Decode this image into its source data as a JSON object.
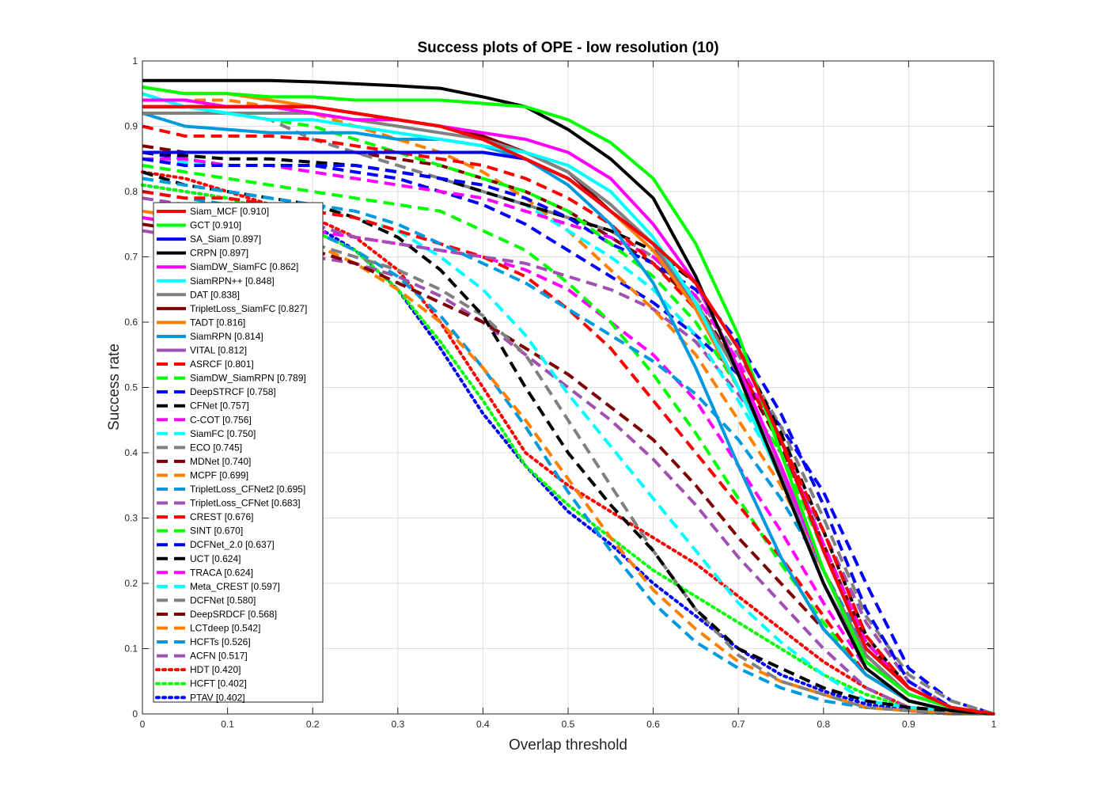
{
  "chart_data": {
    "type": "line",
    "title": "Success plots of OPE - low resolution (10)",
    "xlabel": "Overlap threshold",
    "ylabel": "Success rate",
    "xlim": [
      0,
      1
    ],
    "ylim": [
      0,
      1
    ],
    "grid": true,
    "legend_position": "left",
    "xticks": [
      "0",
      "0.1",
      "0.2",
      "0.3",
      "0.4",
      "0.5",
      "0.6",
      "0.7",
      "0.8",
      "0.9",
      "1"
    ],
    "yticks": [
      "0",
      "0.1",
      "0.2",
      "0.3",
      "0.4",
      "0.5",
      "0.6",
      "0.7",
      "0.8",
      "0.9",
      "1"
    ],
    "x": [
      0,
      0.05,
      0.1,
      0.15,
      0.2,
      0.25,
      0.3,
      0.35,
      0.4,
      0.45,
      0.5,
      0.55,
      0.6,
      0.65,
      0.7,
      0.75,
      0.8,
      0.85,
      0.9,
      0.95,
      1.0
    ],
    "series": [
      {
        "name": "Siam_MCF",
        "label": "Siam_MCF [0.910]",
        "color": "#ff0000",
        "style": "solid",
        "values": [
          0.93,
          0.93,
          0.93,
          0.93,
          0.93,
          0.92,
          0.91,
          0.9,
          0.88,
          0.85,
          0.82,
          0.77,
          0.72,
          0.66,
          0.56,
          0.42,
          0.25,
          0.1,
          0.04,
          0.01,
          0
        ]
      },
      {
        "name": "GCT",
        "label": "GCT [0.910]",
        "color": "#00ff00",
        "style": "solid",
        "values": [
          0.96,
          0.95,
          0.95,
          0.945,
          0.945,
          0.94,
          0.94,
          0.94,
          0.935,
          0.93,
          0.91,
          0.875,
          0.82,
          0.72,
          0.58,
          0.4,
          0.22,
          0.08,
          0.03,
          0.01,
          0
        ]
      },
      {
        "name": "SA_Siam",
        "label": "SA_Siam [0.897]",
        "color": "#0000ff",
        "style": "solid",
        "values": [
          0.86,
          0.86,
          0.86,
          0.86,
          0.86,
          0.86,
          0.86,
          0.86,
          0.86,
          0.85,
          0.82,
          0.77,
          0.72,
          0.66,
          0.56,
          0.42,
          0.25,
          0.1,
          0.04,
          0.01,
          0
        ]
      },
      {
        "name": "CRPN",
        "label": "CRPN [0.897]",
        "color": "#000000",
        "style": "solid",
        "values": [
          0.97,
          0.97,
          0.97,
          0.97,
          0.968,
          0.965,
          0.962,
          0.958,
          0.945,
          0.93,
          0.895,
          0.85,
          0.79,
          0.67,
          0.52,
          0.36,
          0.2,
          0.07,
          0.02,
          0.005,
          0
        ]
      },
      {
        "name": "SiamDW_SiamFC",
        "label": "SiamDW_SiamFC [0.862]",
        "color": "#ff00ff",
        "style": "solid",
        "values": [
          0.94,
          0.94,
          0.93,
          0.93,
          0.92,
          0.91,
          0.91,
          0.9,
          0.89,
          0.88,
          0.86,
          0.82,
          0.75,
          0.66,
          0.53,
          0.38,
          0.22,
          0.08,
          0.03,
          0.01,
          0
        ]
      },
      {
        "name": "SiamRPN++",
        "label": "SiamRPN++ [0.848]",
        "color": "#00ffff",
        "style": "solid",
        "values": [
          0.95,
          0.93,
          0.92,
          0.91,
          0.91,
          0.9,
          0.89,
          0.88,
          0.87,
          0.86,
          0.84,
          0.8,
          0.73,
          0.63,
          0.5,
          0.36,
          0.2,
          0.07,
          0.02,
          0.005,
          0
        ]
      },
      {
        "name": "DAT",
        "label": "DAT [0.838]",
        "color": "#808080",
        "style": "solid",
        "values": [
          0.92,
          0.92,
          0.92,
          0.92,
          0.92,
          0.91,
          0.9,
          0.89,
          0.88,
          0.86,
          0.83,
          0.78,
          0.72,
          0.63,
          0.52,
          0.38,
          0.22,
          0.09,
          0.03,
          0.01,
          0
        ]
      },
      {
        "name": "TripletLoss_SiamFC",
        "label": "TripletLoss_SiamFC [0.827]",
        "color": "#800000",
        "style": "solid",
        "values": [
          0.93,
          0.93,
          0.93,
          0.93,
          0.93,
          0.92,
          0.91,
          0.9,
          0.885,
          0.86,
          0.83,
          0.77,
          0.72,
          0.63,
          0.52,
          0.38,
          0.22,
          0.09,
          0.03,
          0.01,
          0
        ]
      },
      {
        "name": "TADT",
        "label": "TADT [0.816]",
        "color": "#ff8000",
        "style": "solid",
        "values": [
          0.96,
          0.95,
          0.95,
          0.94,
          0.93,
          0.92,
          0.91,
          0.9,
          0.88,
          0.85,
          0.82,
          0.77,
          0.71,
          0.62,
          0.5,
          0.36,
          0.2,
          0.07,
          0.02,
          0.005,
          0
        ]
      },
      {
        "name": "SiamRPN",
        "label": "SiamRPN [0.814]",
        "color": "#0099dd",
        "style": "solid",
        "values": [
          0.92,
          0.9,
          0.895,
          0.89,
          0.89,
          0.89,
          0.88,
          0.88,
          0.87,
          0.85,
          0.81,
          0.75,
          0.66,
          0.53,
          0.38,
          0.24,
          0.13,
          0.06,
          0.02,
          0.005,
          0
        ]
      },
      {
        "name": "VITAL",
        "label": "VITAL [0.812]",
        "color": "#a050b0",
        "style": "solid",
        "values": [
          0.93,
          0.93,
          0.93,
          0.93,
          0.93,
          0.92,
          0.91,
          0.9,
          0.88,
          0.85,
          0.82,
          0.77,
          0.72,
          0.62,
          0.5,
          0.37,
          0.2,
          0.08,
          0.03,
          0.01,
          0
        ]
      },
      {
        "name": "ASRCF",
        "label": "ASRCF [0.801]",
        "color": "#ff0000",
        "style": "dashed",
        "values": [
          0.9,
          0.885,
          0.885,
          0.885,
          0.88,
          0.87,
          0.86,
          0.85,
          0.84,
          0.82,
          0.79,
          0.75,
          0.69,
          0.62,
          0.53,
          0.42,
          0.28,
          0.12,
          0.04,
          0.01,
          0
        ]
      },
      {
        "name": "SiamDW_SiamRPN",
        "label": "SiamDW_SiamRPN [0.789]",
        "color": "#00ff00",
        "style": "dashed",
        "values": [
          0.93,
          0.93,
          0.92,
          0.91,
          0.9,
          0.88,
          0.86,
          0.84,
          0.82,
          0.8,
          0.77,
          0.72,
          0.67,
          0.6,
          0.5,
          0.4,
          0.25,
          0.1,
          0.04,
          0.01,
          0
        ]
      },
      {
        "name": "DeepSTRCF",
        "label": "DeepSTRCF [0.758]",
        "color": "#0000ff",
        "style": "dashed",
        "values": [
          0.85,
          0.84,
          0.84,
          0.84,
          0.84,
          0.84,
          0.83,
          0.82,
          0.81,
          0.79,
          0.76,
          0.72,
          0.69,
          0.65,
          0.57,
          0.46,
          0.32,
          0.16,
          0.05,
          0.01,
          0
        ]
      },
      {
        "name": "CFNet",
        "label": "CFNet [0.757]",
        "color": "#000000",
        "style": "dashed",
        "values": [
          0.86,
          0.855,
          0.85,
          0.85,
          0.845,
          0.84,
          0.83,
          0.82,
          0.8,
          0.78,
          0.76,
          0.74,
          0.71,
          0.66,
          0.56,
          0.43,
          0.28,
          0.12,
          0.04,
          0.01,
          0
        ]
      },
      {
        "name": "C-COT",
        "label": "C-COT [0.756]",
        "color": "#ff00ff",
        "style": "dashed",
        "values": [
          0.85,
          0.85,
          0.84,
          0.84,
          0.83,
          0.82,
          0.81,
          0.8,
          0.79,
          0.77,
          0.75,
          0.73,
          0.7,
          0.64,
          0.54,
          0.42,
          0.26,
          0.11,
          0.04,
          0.01,
          0
        ]
      },
      {
        "name": "SiamFC",
        "label": "SiamFC [0.750]",
        "color": "#00ffff",
        "style": "dashed",
        "values": [
          0.85,
          0.845,
          0.84,
          0.84,
          0.84,
          0.84,
          0.83,
          0.82,
          0.8,
          0.78,
          0.74,
          0.7,
          0.65,
          0.58,
          0.48,
          0.37,
          0.22,
          0.09,
          0.03,
          0.01,
          0
        ]
      },
      {
        "name": "ECO",
        "label": "ECO [0.745]",
        "color": "#808080",
        "style": "dashed",
        "values": [
          0.92,
          0.92,
          0.92,
          0.91,
          0.88,
          0.86,
          0.84,
          0.82,
          0.8,
          0.78,
          0.76,
          0.74,
          0.7,
          0.64,
          0.55,
          0.44,
          0.3,
          0.15,
          0.06,
          0.02,
          0
        ]
      },
      {
        "name": "MDNet",
        "label": "MDNet [0.740]",
        "color": "#800000",
        "style": "dashed",
        "values": [
          0.87,
          0.86,
          0.86,
          0.86,
          0.86,
          0.86,
          0.85,
          0.84,
          0.82,
          0.8,
          0.77,
          0.73,
          0.69,
          0.63,
          0.53,
          0.41,
          0.26,
          0.11,
          0.04,
          0.01,
          0
        ]
      },
      {
        "name": "MCPF",
        "label": "MCPF [0.699]",
        "color": "#ff8000",
        "style": "dashed",
        "values": [
          0.94,
          0.94,
          0.94,
          0.93,
          0.92,
          0.9,
          0.88,
          0.86,
          0.83,
          0.79,
          0.74,
          0.68,
          0.62,
          0.55,
          0.45,
          0.35,
          0.22,
          0.09,
          0.03,
          0.01,
          0
        ]
      },
      {
        "name": "TripletLoss_CFNet2",
        "label": "TripletLoss_CFNet2 [0.695]",
        "color": "#0099dd",
        "style": "dashed",
        "values": [
          0.82,
          0.81,
          0.8,
          0.79,
          0.78,
          0.77,
          0.75,
          0.72,
          0.69,
          0.66,
          0.62,
          0.58,
          0.54,
          0.49,
          0.42,
          0.33,
          0.22,
          0.1,
          0.04,
          0.01,
          0
        ]
      },
      {
        "name": "TripletLoss_CFNet",
        "label": "TripletLoss_CFNet [0.683]",
        "color": "#a050b0",
        "style": "dashed",
        "values": [
          0.79,
          0.78,
          0.77,
          0.76,
          0.75,
          0.73,
          0.72,
          0.71,
          0.7,
          0.69,
          0.67,
          0.65,
          0.62,
          0.57,
          0.49,
          0.4,
          0.28,
          0.14,
          0.05,
          0.01,
          0
        ]
      },
      {
        "name": "CREST",
        "label": "CREST [0.676]",
        "color": "#ff0000",
        "style": "dashed",
        "values": [
          0.8,
          0.79,
          0.79,
          0.78,
          0.77,
          0.76,
          0.74,
          0.72,
          0.7,
          0.67,
          0.62,
          0.56,
          0.48,
          0.4,
          0.32,
          0.24,
          0.15,
          0.06,
          0.02,
          0.005,
          0
        ]
      },
      {
        "name": "SINT",
        "label": "SINT [0.670]",
        "color": "#00ff00",
        "style": "dashed",
        "values": [
          0.84,
          0.83,
          0.82,
          0.81,
          0.8,
          0.79,
          0.78,
          0.77,
          0.74,
          0.71,
          0.66,
          0.6,
          0.52,
          0.43,
          0.33,
          0.23,
          0.14,
          0.06,
          0.02,
          0.005,
          0
        ]
      },
      {
        "name": "DCFNet_2.0",
        "label": "DCFNet_2.0 [0.637]",
        "color": "#0000ff",
        "style": "dashed",
        "values": [
          0.86,
          0.85,
          0.84,
          0.84,
          0.84,
          0.83,
          0.82,
          0.8,
          0.78,
          0.75,
          0.71,
          0.67,
          0.63,
          0.58,
          0.52,
          0.44,
          0.34,
          0.2,
          0.07,
          0.02,
          0
        ]
      },
      {
        "name": "UCT",
        "label": "UCT [0.624]",
        "color": "#000000",
        "style": "dashed",
        "values": [
          0.83,
          0.81,
          0.8,
          0.79,
          0.78,
          0.76,
          0.73,
          0.68,
          0.61,
          0.5,
          0.4,
          0.32,
          0.25,
          0.16,
          0.1,
          0.07,
          0.04,
          0.02,
          0.01,
          0.005,
          0
        ]
      },
      {
        "name": "TRACA",
        "label": "TRACA [0.624]",
        "color": "#ff00ff",
        "style": "dashed",
        "values": [
          0.76,
          0.75,
          0.75,
          0.74,
          0.74,
          0.73,
          0.72,
          0.71,
          0.7,
          0.68,
          0.65,
          0.6,
          0.55,
          0.48,
          0.38,
          0.28,
          0.17,
          0.07,
          0.02,
          0.005,
          0
        ]
      },
      {
        "name": "Meta_CREST",
        "label": "Meta_CREST [0.597]",
        "color": "#00ffff",
        "style": "dashed",
        "values": [
          0.82,
          0.81,
          0.8,
          0.79,
          0.78,
          0.76,
          0.74,
          0.7,
          0.65,
          0.58,
          0.49,
          0.41,
          0.33,
          0.25,
          0.17,
          0.11,
          0.06,
          0.02,
          0.01,
          0.005,
          0
        ]
      },
      {
        "name": "DCFNet",
        "label": "DCFNet [0.580]",
        "color": "#808080",
        "style": "dashed",
        "values": [
          0.76,
          0.75,
          0.74,
          0.73,
          0.72,
          0.7,
          0.68,
          0.65,
          0.61,
          0.55,
          0.45,
          0.35,
          0.25,
          0.16,
          0.09,
          0.05,
          0.03,
          0.01,
          0.005,
          0,
          0
        ]
      },
      {
        "name": "DeepSRDCF",
        "label": "DeepSRDCF [0.568]",
        "color": "#800000",
        "style": "dashed",
        "values": [
          0.75,
          0.74,
          0.73,
          0.72,
          0.71,
          0.69,
          0.66,
          0.63,
          0.6,
          0.56,
          0.52,
          0.47,
          0.42,
          0.35,
          0.27,
          0.2,
          0.13,
          0.06,
          0.02,
          0.005,
          0
        ]
      },
      {
        "name": "LCTdeep",
        "label": "LCTdeep [0.542]",
        "color": "#ff8000",
        "style": "dashed",
        "values": [
          0.77,
          0.76,
          0.75,
          0.74,
          0.72,
          0.69,
          0.65,
          0.6,
          0.53,
          0.45,
          0.36,
          0.27,
          0.19,
          0.13,
          0.08,
          0.05,
          0.03,
          0.01,
          0.005,
          0,
          0
        ]
      },
      {
        "name": "HCFTs",
        "label": "HCFTs [0.526]",
        "color": "#0099dd",
        "style": "dashed",
        "values": [
          0.8,
          0.79,
          0.78,
          0.76,
          0.74,
          0.71,
          0.67,
          0.61,
          0.53,
          0.44,
          0.34,
          0.25,
          0.17,
          0.11,
          0.07,
          0.04,
          0.02,
          0.01,
          0.005,
          0,
          0
        ]
      },
      {
        "name": "ACFN",
        "label": "ACFN [0.517]",
        "color": "#a050b0",
        "style": "dashed",
        "values": [
          0.74,
          0.73,
          0.72,
          0.71,
          0.7,
          0.69,
          0.67,
          0.64,
          0.6,
          0.55,
          0.5,
          0.45,
          0.39,
          0.32,
          0.24,
          0.17,
          0.1,
          0.04,
          0.01,
          0.005,
          0
        ]
      },
      {
        "name": "HDT",
        "label": "HDT [0.420]",
        "color": "#ff0000",
        "style": "dotted",
        "values": [
          0.83,
          0.82,
          0.8,
          0.78,
          0.76,
          0.73,
          0.68,
          0.6,
          0.5,
          0.4,
          0.35,
          0.31,
          0.27,
          0.23,
          0.18,
          0.13,
          0.08,
          0.04,
          0.01,
          0.005,
          0
        ]
      },
      {
        "name": "HCFT",
        "label": "HCFT [0.402]",
        "color": "#00ff00",
        "style": "dotted",
        "values": [
          0.81,
          0.8,
          0.79,
          0.77,
          0.74,
          0.71,
          0.65,
          0.57,
          0.48,
          0.38,
          0.32,
          0.27,
          0.22,
          0.18,
          0.14,
          0.1,
          0.06,
          0.03,
          0.01,
          0.005,
          0
        ]
      },
      {
        "name": "PTAV",
        "label": "PTAV [0.402]",
        "color": "#0000ff",
        "style": "dotted",
        "values": [
          0.81,
          0.8,
          0.79,
          0.77,
          0.75,
          0.71,
          0.65,
          0.56,
          0.46,
          0.38,
          0.31,
          0.26,
          0.2,
          0.15,
          0.1,
          0.06,
          0.035,
          0.015,
          0.005,
          0,
          0
        ]
      }
    ]
  }
}
